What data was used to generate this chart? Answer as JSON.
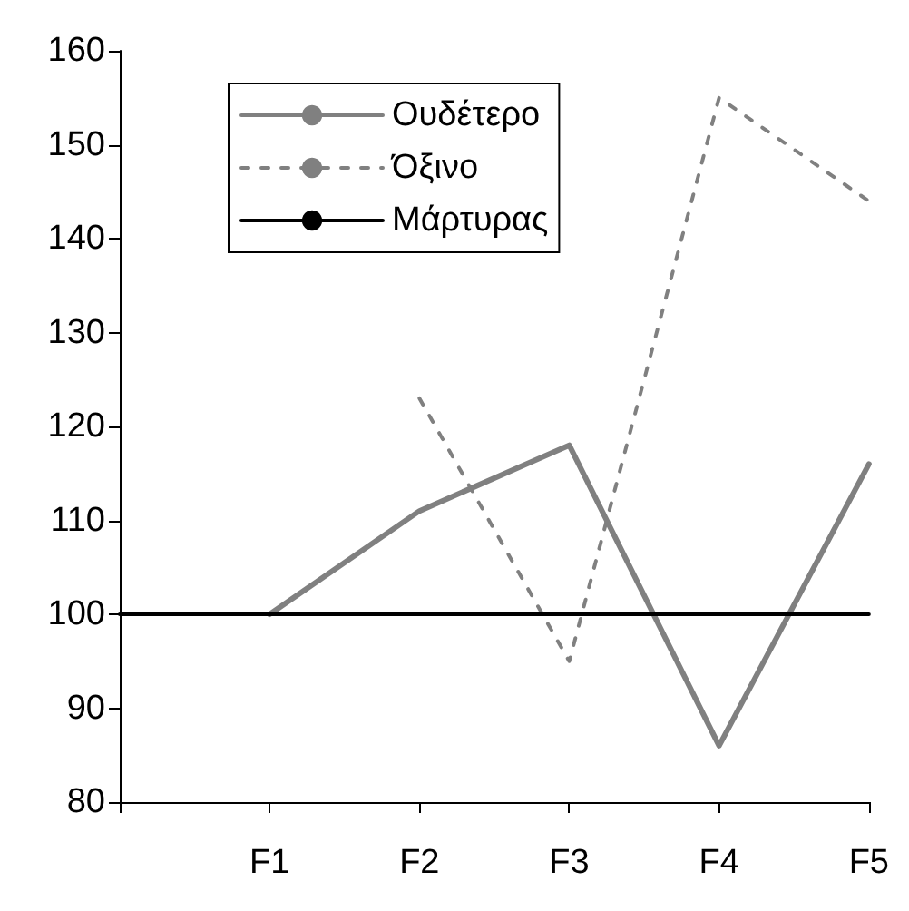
{
  "chart_data": {
    "type": "line",
    "categories": [
      null,
      "F1",
      "F2",
      "F3",
      "F4",
      "F5"
    ],
    "series": [
      {
        "name": "Ουδέτερο",
        "color": "#808080",
        "line_style": "solid",
        "values": [
          null,
          100,
          111,
          118,
          86,
          116
        ]
      },
      {
        "name": "Όξινο",
        "color": "#808080",
        "line_style": "dotted",
        "values": [
          null,
          null,
          123,
          95,
          155,
          144
        ]
      },
      {
        "name": "Μάρτυρας",
        "color": "#000000",
        "line_style": "solid",
        "values": [
          100,
          100,
          100,
          100,
          100,
          100
        ]
      }
    ],
    "ylim": [
      80,
      160
    ],
    "yticks": [
      80,
      90,
      100,
      110,
      120,
      130,
      140,
      150,
      160
    ],
    "grid": false,
    "legend": "top left",
    "marker": "none"
  }
}
